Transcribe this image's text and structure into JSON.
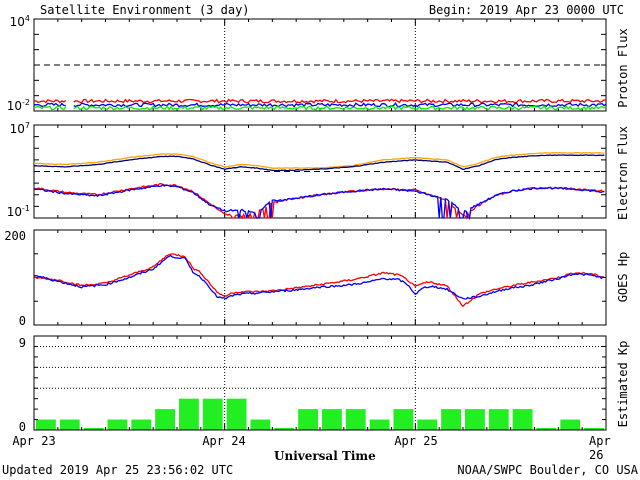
{
  "header": {
    "title": "Satellite Environment (3 day)",
    "begin": "Begin:  2019 Apr 23 0000 UTC"
  },
  "footer": {
    "updated": "Updated 2019 Apr 25 23:56:02 UTC",
    "credit": "NOAA/SWPC Boulder, CO USA"
  },
  "colors": {
    "red": "#ff0000",
    "blue": "#0000ff",
    "green": "#00ee00",
    "orange": "#ffa500",
    "navy": "#000080",
    "kp_fill": "#22ee22"
  },
  "chart_data": [
    {
      "type": "line",
      "panel": "proton",
      "ylabel": "Proton Flux",
      "yscale": "log",
      "ylim_exp": [
        -2,
        4
      ],
      "ytick_labels": [
        {
          "base": "10",
          "exp": "4"
        },
        {
          "base": "10",
          "exp": "-2"
        }
      ],
      "threshold_exp": 1,
      "series": [
        {
          "color": "red",
          "level_exp": -1.35
        },
        {
          "color": "blue",
          "level_exp": -1.6
        },
        {
          "color": "green",
          "level_exp": -1.8
        }
      ],
      "gap_hours": [
        4.0,
        5.0
      ]
    },
    {
      "type": "line",
      "panel": "electron",
      "ylabel": "Electron Flux",
      "yscale": "log",
      "ylim_exp": [
        -1,
        7
      ],
      "ytick_labels": [
        {
          "base": "10",
          "exp": "7"
        },
        {
          "base": "10",
          "exp": "-1"
        }
      ],
      "threshold_exp": 3,
      "hours": [
        0,
        4,
        8,
        12,
        16,
        18,
        20,
        22,
        24,
        26,
        28,
        30,
        32,
        36,
        40,
        44,
        48,
        52,
        54,
        56,
        58,
        60,
        62,
        64,
        68,
        72
      ],
      "series": [
        {
          "color": "orange",
          "values_exp": [
            3.7,
            3.6,
            3.8,
            4.2,
            4.5,
            4.5,
            4.3,
            3.8,
            3.4,
            3.6,
            3.5,
            3.3,
            3.3,
            3.3,
            3.5,
            4.0,
            4.2,
            4.0,
            3.4,
            3.7,
            4.2,
            4.4,
            4.5,
            4.6,
            4.6,
            4.6
          ]
        },
        {
          "color": "navy",
          "values_exp": [
            3.5,
            3.4,
            3.6,
            4.0,
            4.3,
            4.3,
            4.1,
            3.6,
            3.2,
            3.4,
            3.3,
            3.1,
            3.1,
            3.2,
            3.4,
            3.8,
            4.0,
            3.8,
            3.2,
            3.5,
            4.0,
            4.2,
            4.3,
            4.4,
            4.4,
            4.4
          ]
        },
        {
          "color": "red",
          "values_exp": [
            1.6,
            1.2,
            1.0,
            1.5,
            1.9,
            1.8,
            1.3,
            0.3,
            -0.7,
            -0.8,
            -0.5,
            0.3,
            0.6,
            1.0,
            1.3,
            1.5,
            1.4,
            0.5,
            -0.8,
            0.1,
            0.9,
            1.3,
            1.5,
            1.6,
            1.5,
            1.3
          ]
        },
        {
          "color": "blue",
          "values_exp": [
            1.5,
            1.1,
            0.9,
            1.4,
            1.8,
            1.7,
            1.2,
            0.2,
            -0.4,
            -0.3,
            -0.6,
            0.5,
            0.6,
            1.0,
            1.3,
            1.5,
            1.3,
            0.6,
            -0.5,
            0.2,
            0.9,
            1.3,
            1.5,
            1.6,
            1.5,
            1.2
          ]
        }
      ]
    },
    {
      "type": "line",
      "panel": "goes",
      "ylabel": "GOES Hp",
      "ylim": [
        0,
        200
      ],
      "ytick_labels": [
        "200",
        "0"
      ],
      "hours": [
        0,
        3,
        6,
        9,
        12,
        15,
        17,
        19,
        20,
        21,
        22,
        23,
        24,
        25,
        26,
        28,
        30,
        33,
        36,
        38,
        40,
        42,
        44,
        46,
        47,
        48,
        49,
        50,
        52,
        54,
        56,
        58,
        60,
        62,
        64,
        66,
        68,
        70,
        72
      ],
      "series": [
        {
          "color": "red",
          "values": [
            100,
            95,
            83,
            88,
            105,
            122,
            150,
            145,
            120,
            110,
            90,
            70,
            60,
            68,
            70,
            70,
            72,
            78,
            85,
            90,
            95,
            102,
            110,
            105,
            95,
            80,
            88,
            90,
            82,
            40,
            65,
            75,
            82,
            88,
            94,
            100,
            110,
            108,
            100
          ]
        },
        {
          "color": "blue",
          "values": [
            105,
            92,
            80,
            85,
            100,
            118,
            145,
            140,
            112,
            100,
            82,
            60,
            55,
            62,
            65,
            67,
            70,
            74,
            80,
            82,
            85,
            90,
            98,
            95,
            85,
            65,
            78,
            82,
            75,
            55,
            60,
            70,
            78,
            82,
            90,
            98,
            108,
            105,
            98
          ]
        }
      ]
    },
    {
      "type": "bar",
      "panel": "kp",
      "ylabel": "Estimated Kp",
      "ylim": [
        0,
        9
      ],
      "ytick_labels": [
        "9",
        "0"
      ],
      "values": [
        1,
        1,
        0.2,
        1,
        1,
        2,
        3,
        3,
        3,
        1,
        0.2,
        2,
        2,
        2,
        1,
        2,
        1,
        2,
        2,
        2,
        2,
        0.2,
        1,
        0.2
      ],
      "xlabel": "Universal Time",
      "x_tick_labels": [
        "Apr 23",
        "Apr 24",
        "Apr 25",
        "Apr 26"
      ]
    }
  ]
}
